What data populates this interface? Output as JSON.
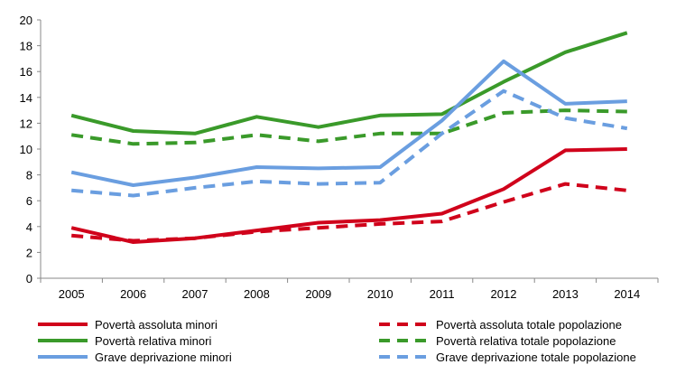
{
  "chart_data": {
    "type": "line",
    "x": [
      "2005",
      "2006",
      "2007",
      "2008",
      "2009",
      "2010",
      "2011",
      "2012",
      "2013",
      "2014"
    ],
    "ylim": [
      0,
      20
    ],
    "yticks": [
      0,
      2,
      4,
      6,
      8,
      10,
      12,
      14,
      16,
      18,
      20
    ],
    "grid": false,
    "legend_position": "bottom",
    "series": [
      {
        "name": "Povertà assoluta minori",
        "color": "#d0021b",
        "dash": "solid",
        "values": [
          3.9,
          2.8,
          3.1,
          3.7,
          4.3,
          4.5,
          5.0,
          6.9,
          9.9,
          10.0
        ]
      },
      {
        "name": "Povertà assoluta totale popolazione",
        "color": "#d0021b",
        "dash": "dashed",
        "values": [
          3.3,
          2.9,
          3.1,
          3.6,
          3.9,
          4.2,
          4.4,
          5.9,
          7.3,
          6.8
        ]
      },
      {
        "name": "Povertà relativa minori",
        "color": "#3a9a2a",
        "dash": "solid",
        "values": [
          12.6,
          11.4,
          11.2,
          12.5,
          11.7,
          12.6,
          12.7,
          15.2,
          17.5,
          19.0
        ]
      },
      {
        "name": "Povertà relativa totale popolazione",
        "color": "#3a9a2a",
        "dash": "dashed",
        "values": [
          11.1,
          10.4,
          10.5,
          11.1,
          10.6,
          11.2,
          11.2,
          12.8,
          13.0,
          12.9
        ]
      },
      {
        "name": "Grave deprivazione minori",
        "color": "#6a9ee0",
        "dash": "solid",
        "values": [
          8.2,
          7.2,
          7.8,
          8.6,
          8.5,
          8.6,
          12.2,
          16.8,
          13.5,
          13.7
        ]
      },
      {
        "name": "Grave deprivazione totale popolazione",
        "color": "#6a9ee0",
        "dash": "dashed",
        "values": [
          6.8,
          6.4,
          7.0,
          7.5,
          7.3,
          7.4,
          11.2,
          14.5,
          12.4,
          11.6
        ]
      }
    ]
  }
}
